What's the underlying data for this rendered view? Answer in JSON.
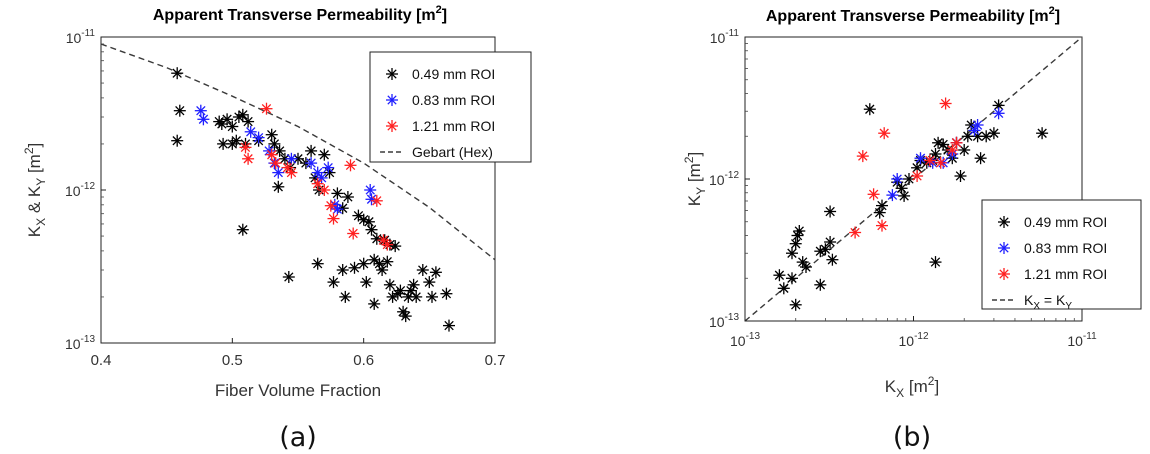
{
  "colors": {
    "black": "#000000",
    "blue": "#1f1fff",
    "red": "#ff2020",
    "line": "#3a3a3a"
  },
  "chart_data": [
    {
      "type": "scatter",
      "title": "Apparent Transverse Permeability [m",
      "title_sup": "2",
      "title_end": "]",
      "xlabel": "Fiber Volume Fraction",
      "ylabel_main": "K",
      "ylabel_sub1": "X",
      "ylabel_mid": " & K",
      "ylabel_sub2": "Y",
      "ylabel_unit": " [m",
      "ylabel_sup": "2",
      "ylabel_end": "]",
      "xscale": "linear",
      "yscale": "log",
      "xlim": [
        0.4,
        0.7
      ],
      "ylim": [
        1e-13,
        1e-11
      ],
      "xticks": [
        0.4,
        0.5,
        0.6,
        0.7
      ],
      "xtick_labels": [
        "0.4",
        "0.5",
        "0.6",
        "0.7"
      ],
      "yticks": [
        1e-13,
        1e-12,
        1e-11
      ],
      "ytick_labels": [
        {
          "base": "10",
          "exp": "-13"
        },
        {
          "base": "10",
          "exp": "-12"
        },
        {
          "base": "10",
          "exp": "-11"
        }
      ],
      "grid": false,
      "legend_position": "top-right",
      "panel_label": "(a)",
      "series": [
        {
          "name": "0.49 mm ROI",
          "color": "black",
          "marker": "asterisk",
          "points": [
            [
              0.458,
              5.8e-12
            ],
            [
              0.46,
              3.3e-12
            ],
            [
              0.458,
              2.1e-12
            ],
            [
              0.49,
              2.8e-12
            ],
            [
              0.492,
              2.7e-12
            ],
            [
              0.496,
              2.9e-12
            ],
            [
              0.5,
              2.6e-12
            ],
            [
              0.505,
              3e-12
            ],
            [
              0.508,
              3.1e-12
            ],
            [
              0.512,
              2.8e-12
            ],
            [
              0.493,
              2e-12
            ],
            [
              0.5,
              2e-12
            ],
            [
              0.503,
              2.1e-12
            ],
            [
              0.51,
              2e-12
            ],
            [
              0.52,
              2.1e-12
            ],
            [
              0.53,
              2.3e-12
            ],
            [
              0.532,
              2e-12
            ],
            [
              0.536,
              1.8e-12
            ],
            [
              0.54,
              1.6e-12
            ],
            [
              0.544,
              1.4e-12
            ],
            [
              0.535,
              1.05e-12
            ],
            [
              0.55,
              1.6e-12
            ],
            [
              0.556,
              1.5e-12
            ],
            [
              0.56,
              1.8e-12
            ],
            [
              0.563,
              1.2e-12
            ],
            [
              0.566,
              1e-12
            ],
            [
              0.57,
              1.7e-12
            ],
            [
              0.574,
              1.3e-12
            ],
            [
              0.58,
              9.5e-13
            ],
            [
              0.584,
              7.6e-13
            ],
            [
              0.588,
              9e-13
            ],
            [
              0.596,
              6.8e-13
            ],
            [
              0.6,
              6.4e-13
            ],
            [
              0.604,
              6.2e-13
            ],
            [
              0.606,
              5.5e-13
            ],
            [
              0.61,
              4.8e-13
            ],
            [
              0.616,
              4.7e-13
            ],
            [
              0.62,
              4.4e-13
            ],
            [
              0.624,
              4.3e-13
            ],
            [
              0.508,
              5.5e-13
            ],
            [
              0.543,
              2.7e-13
            ],
            [
              0.565,
              3.3e-13
            ],
            [
              0.577,
              2.5e-13
            ],
            [
              0.584,
              3e-13
            ],
            [
              0.593,
              3.1e-13
            ],
            [
              0.6,
              3.3e-13
            ],
            [
              0.602,
              2.5e-13
            ],
            [
              0.608,
              3.5e-13
            ],
            [
              0.612,
              3.3e-13
            ],
            [
              0.614,
              3e-13
            ],
            [
              0.618,
              3.4e-13
            ],
            [
              0.62,
              2.4e-13
            ],
            [
              0.622,
              2e-13
            ],
            [
              0.626,
              2.1e-13
            ],
            [
              0.628,
              2.2e-13
            ],
            [
              0.63,
              1.6e-13
            ],
            [
              0.632,
              1.5e-13
            ],
            [
              0.634,
              2e-13
            ],
            [
              0.636,
              2.2e-13
            ],
            [
              0.638,
              2.4e-13
            ],
            [
              0.64,
              2e-13
            ],
            [
              0.645,
              3e-13
            ],
            [
              0.65,
              2.5e-13
            ],
            [
              0.652,
              2e-13
            ],
            [
              0.655,
              2.9e-13
            ],
            [
              0.663,
              2.1e-13
            ],
            [
              0.665,
              1.3e-13
            ],
            [
              0.586,
              2e-13
            ],
            [
              0.608,
              1.8e-13
            ]
          ]
        },
        {
          "name": "0.83 mm ROI",
          "color": "blue",
          "marker": "asterisk",
          "points": [
            [
              0.476,
              3.3e-12
            ],
            [
              0.478,
              2.9e-12
            ],
            [
              0.514,
              2.4e-12
            ],
            [
              0.52,
              2.2e-12
            ],
            [
              0.528,
              1.8e-12
            ],
            [
              0.532,
              1.5e-12
            ],
            [
              0.535,
              1.3e-12
            ],
            [
              0.545,
              1.6e-12
            ],
            [
              0.56,
              1.5e-12
            ],
            [
              0.565,
              1.3e-12
            ],
            [
              0.568,
              1.2e-12
            ],
            [
              0.573,
              1.4e-12
            ],
            [
              0.578,
              8e-13
            ],
            [
              0.58,
              7.5e-13
            ],
            [
              0.605,
              1e-12
            ],
            [
              0.606,
              8.7e-13
            ]
          ]
        },
        {
          "name": "1.21 mm ROI",
          "color": "red",
          "marker": "asterisk",
          "points": [
            [
              0.51,
              1.9e-12
            ],
            [
              0.512,
              1.6e-12
            ],
            [
              0.526,
              3.4e-12
            ],
            [
              0.53,
              1.7e-12
            ],
            [
              0.533,
              1.5e-12
            ],
            [
              0.542,
              1.4e-12
            ],
            [
              0.545,
              1.3e-12
            ],
            [
              0.565,
              1.1e-12
            ],
            [
              0.57,
              1e-12
            ],
            [
              0.575,
              7.9e-13
            ],
            [
              0.577,
              6.5e-13
            ],
            [
              0.59,
              1.45e-12
            ],
            [
              0.592,
              5.2e-13
            ],
            [
              0.61,
              8.5e-13
            ],
            [
              0.615,
              4.7e-13
            ],
            [
              0.618,
              4.4e-13
            ]
          ]
        },
        {
          "name": "Gebart (Hex)",
          "color": "line",
          "marker": "dashed-line",
          "points": [
            [
              0.4,
              9e-12
            ],
            [
              0.45,
              6.3e-12
            ],
            [
              0.5,
              4.1e-12
            ],
            [
              0.55,
              2.6e-12
            ],
            [
              0.6,
              1.5e-12
            ],
            [
              0.65,
              7.7e-13
            ],
            [
              0.7,
              3.5e-13
            ]
          ]
        }
      ]
    },
    {
      "type": "scatter",
      "title": "Apparent Transverse Permeability [m",
      "title_sup": "2",
      "title_end": "]",
      "xlabel_main": "K",
      "xlabel_sub": "X",
      "xlabel_unit": " [m",
      "xlabel_sup": "2",
      "xlabel_end": "]",
      "ylabel_main": "K",
      "ylabel_sub": "Y",
      "ylabel_unit": " [m",
      "ylabel_sup": "2",
      "ylabel_end": "]",
      "xscale": "log",
      "yscale": "log",
      "xlim": [
        1e-13,
        1e-11
      ],
      "ylim": [
        1e-13,
        1e-11
      ],
      "xticks": [
        1e-13,
        1e-12,
        1e-11
      ],
      "xtick_labels": [
        {
          "base": "10",
          "exp": "-13"
        },
        {
          "base": "10",
          "exp": "-12"
        },
        {
          "base": "10",
          "exp": "-11"
        }
      ],
      "yticks": [
        1e-13,
        1e-12,
        1e-11
      ],
      "ytick_labels": [
        {
          "base": "10",
          "exp": "-13"
        },
        {
          "base": "10",
          "exp": "-12"
        },
        {
          "base": "10",
          "exp": "-11"
        }
      ],
      "grid": false,
      "legend_position": "bottom-right",
      "panel_label": "(b)",
      "series": [
        {
          "name": "0.49 mm ROI",
          "color": "black",
          "marker": "asterisk",
          "points": [
            [
              1.6e-13,
              2.1e-13
            ],
            [
              1.7e-13,
              1.7e-13
            ],
            [
              1.9e-13,
              2e-13
            ],
            [
              2e-13,
              1.3e-13
            ],
            [
              1.9e-13,
              3e-13
            ],
            [
              2e-13,
              3.5e-13
            ],
            [
              2.05e-13,
              4e-13
            ],
            [
              2.1e-13,
              4.3e-13
            ],
            [
              2.2e-13,
              2.6e-13
            ],
            [
              2.3e-13,
              2.4e-13
            ],
            [
              2.8e-13,
              3.1e-13
            ],
            [
              3e-13,
              3.2e-13
            ],
            [
              3.2e-13,
              3.6e-13
            ],
            [
              3.3e-13,
              2.7e-13
            ],
            [
              2.8e-13,
              1.8e-13
            ],
            [
              3.2e-13,
              5.9e-13
            ],
            [
              5.5e-13,
              3.1e-12
            ],
            [
              6.5e-13,
              6.5e-13
            ],
            [
              6.3e-13,
              5.8e-13
            ],
            [
              8e-13,
              9.5e-13
            ],
            [
              8.5e-13,
              8.6e-13
            ],
            [
              8.8e-13,
              7.6e-13
            ],
            [
              9.4e-13,
              1e-12
            ],
            [
              1.05e-12,
              1.2e-12
            ],
            [
              1.1e-12,
              1.35e-12
            ],
            [
              1.2e-12,
              1.3e-12
            ],
            [
              1.3e-12,
              1.35e-12
            ],
            [
              1.35e-12,
              1.5e-12
            ],
            [
              1.4e-12,
              1.8e-12
            ],
            [
              1.5e-12,
              1.75e-12
            ],
            [
              1.6e-12,
              1.6e-12
            ],
            [
              1.7e-12,
              1.4e-12
            ],
            [
              1.8e-12,
              1.8e-12
            ],
            [
              2e-12,
              1.6e-12
            ],
            [
              2.1e-12,
              2e-12
            ],
            [
              2.2e-12,
              2.4e-12
            ],
            [
              2.4e-12,
              2e-12
            ],
            [
              2.5e-12,
              1.4e-12
            ],
            [
              2.7e-12,
              2e-12
            ],
            [
              3e-12,
              2.1e-12
            ],
            [
              3.2e-12,
              3.3e-12
            ],
            [
              1.9e-12,
              1.05e-12
            ],
            [
              1.35e-12,
              2.6e-13
            ],
            [
              5.8e-12,
              2.1e-12
            ]
          ]
        },
        {
          "name": "0.83 mm ROI",
          "color": "blue",
          "marker": "asterisk",
          "points": [
            [
              7.5e-13,
              7.7e-13
            ],
            [
              8e-13,
              1e-12
            ],
            [
              1.1e-12,
              1.4e-12
            ],
            [
              1.3e-12,
              1.3e-12
            ],
            [
              1.5e-12,
              1.3e-12
            ],
            [
              1.7e-12,
              1.5e-12
            ],
            [
              1.8e-12,
              1.8e-12
            ],
            [
              2.3e-12,
              2.2e-12
            ],
            [
              2.4e-12,
              2.4e-12
            ],
            [
              3.2e-12,
              2.9e-12
            ]
          ]
        },
        {
          "name": "1.21 mm ROI",
          "color": "red",
          "marker": "asterisk",
          "points": [
            [
              4.5e-13,
              4.2e-13
            ],
            [
              5e-13,
              1.45e-12
            ],
            [
              5.8e-13,
              7.8e-13
            ],
            [
              6.5e-13,
              4.7e-13
            ],
            [
              6.7e-13,
              2.1e-12
            ],
            [
              1.05e-12,
              1.05e-12
            ],
            [
              1.25e-12,
              1.35e-12
            ],
            [
              1.45e-12,
              1.3e-12
            ],
            [
              1.55e-12,
              3.4e-12
            ],
            [
              1.7e-12,
              1.6e-12
            ],
            [
              1.8e-12,
              1.8e-12
            ]
          ]
        },
        {
          "name": "K_X = K_Y",
          "color": "line",
          "marker": "dashed-line",
          "points": [
            [
              1e-13,
              1e-13
            ],
            [
              1e-11,
              1e-11
            ]
          ]
        }
      ]
    }
  ]
}
